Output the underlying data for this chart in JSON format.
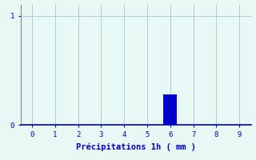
{
  "title": "",
  "xlabel": "Précipitations 1h ( mm )",
  "xlim": [
    -0.5,
    9.5
  ],
  "ylim": [
    0,
    1.1
  ],
  "xticks": [
    0,
    1,
    2,
    3,
    4,
    5,
    6,
    7,
    8,
    9
  ],
  "yticks": [
    0,
    1
  ],
  "bar_x": [
    6
  ],
  "bar_height": [
    0.28
  ],
  "bar_color": "#0000cc",
  "bar_width": 0.6,
  "background_color": "#e8f8f5",
  "axis_color": "#0000bb",
  "left_spine_color": "#888888",
  "grid_color": "#b0cccc",
  "text_color": "#0000cc",
  "tick_fontsize": 6.5,
  "xlabel_fontsize": 7.5
}
